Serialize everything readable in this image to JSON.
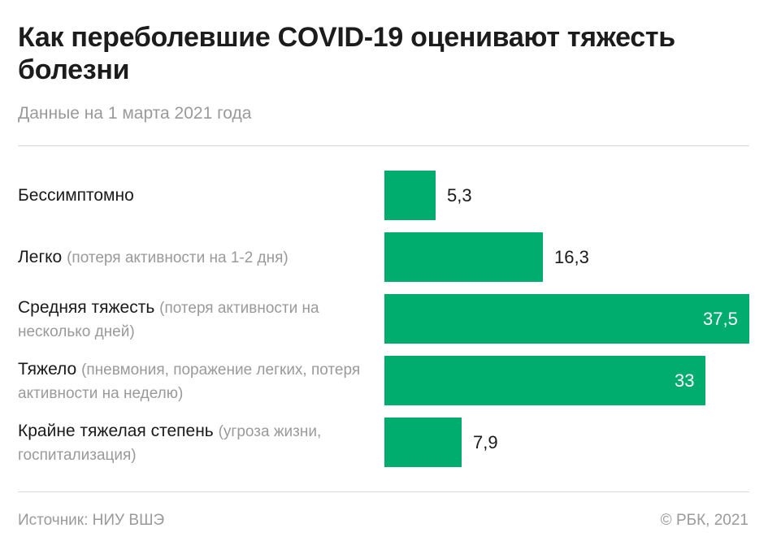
{
  "header": {
    "title": "Как переболевшие COVID-19 оценивают тяжесть болезни",
    "subtitle": "Данные на 1 марта 2021 года"
  },
  "chart_data": {
    "type": "bar",
    "orientation": "horizontal",
    "categories": [
      "Бессимптомно",
      "Легко",
      "Средняя тяжесть",
      "Тяжело",
      "Крайне тяжелая степень"
    ],
    "category_notes": [
      "",
      "(потеря активности на 1-2 дня)",
      "(потеря активности на несколько дней)",
      "(пневмония, поражение легких, потеря активности на неделю)",
      "(угроза жизни, госпитализация)"
    ],
    "values": [
      5.3,
      16.3,
      37.5,
      33,
      7.9
    ],
    "value_labels": [
      "5,3",
      "16,3",
      "37,5",
      "33",
      "7,9"
    ],
    "xlim": [
      0,
      37.5
    ],
    "bar_color": "#00ad6e",
    "grid": false
  },
  "footer": {
    "source": "Источник: НИУ ВШЭ",
    "copyright": "© РБК, 2021"
  }
}
